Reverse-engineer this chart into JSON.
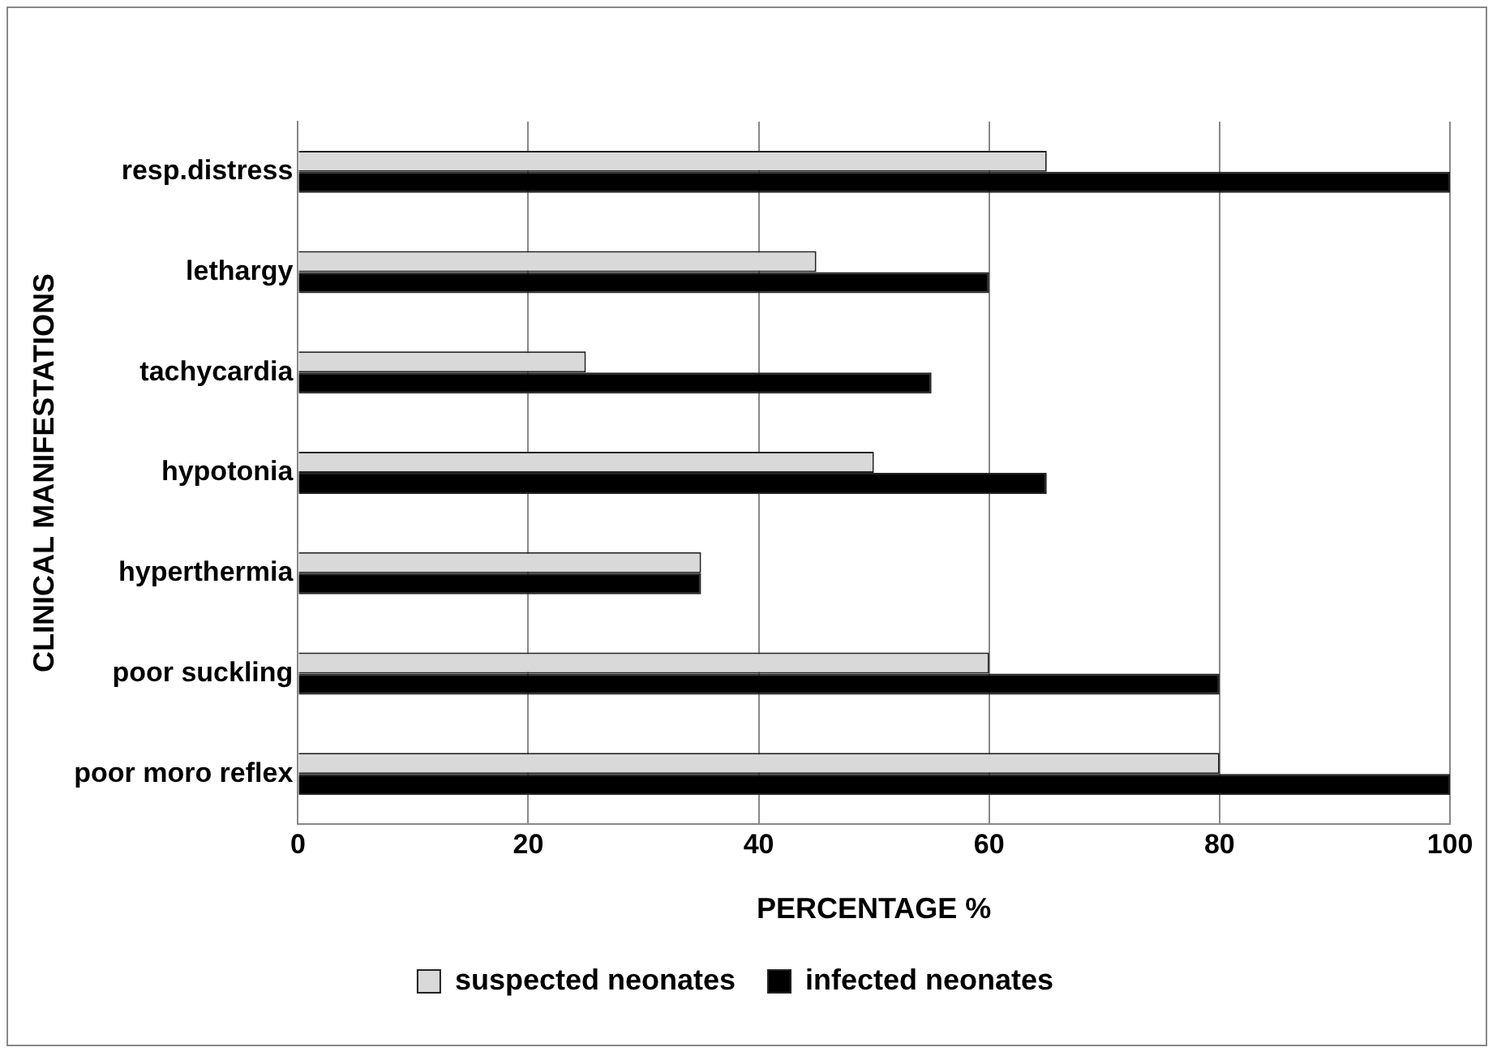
{
  "chart_data": {
    "type": "bar",
    "orientation": "horizontal",
    "xlabel": "PERCENTAGE %",
    "ylabel": "CLINICAL MANIFESTATIONS",
    "categories": [
      "resp.distress",
      "lethargy",
      "tachycardia",
      "hypotonia",
      "hyperthermia",
      "poor suckling",
      "poor moro reflex"
    ],
    "series": [
      {
        "name": "suspected neonates",
        "color": "#d9d9d9",
        "values": [
          65,
          45,
          25,
          50,
          35,
          60,
          80
        ]
      },
      {
        "name": "infected neonates",
        "color": "#000000",
        "values": [
          100,
          60,
          55,
          65,
          35,
          80,
          100
        ]
      }
    ],
    "xlim": [
      0,
      100
    ],
    "xticks": [
      0,
      20,
      40,
      60,
      80,
      100
    ],
    "grid": "x",
    "legend": "bottom"
  }
}
